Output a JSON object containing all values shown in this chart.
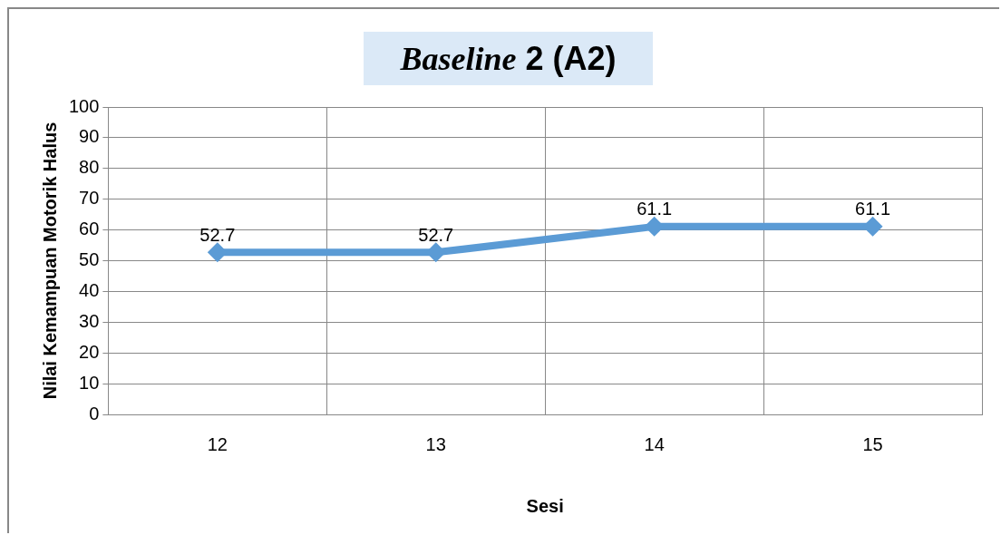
{
  "chart_data": {
    "type": "line",
    "title": "Baseline 2 (A2)",
    "xlabel": "Sesi",
    "ylabel": "Nilai Kemampuan Motorik Halus",
    "categories": [
      "12",
      "13",
      "14",
      "15"
    ],
    "series": [
      {
        "color": "#5b9bd5",
        "values": [
          52.7,
          52.7,
          61.1,
          61.1
        ]
      }
    ],
    "ylim": [
      0,
      100
    ],
    "yticks": [
      0,
      10,
      20,
      30,
      40,
      50,
      60,
      70,
      80,
      90,
      100
    ],
    "grid": true,
    "legend": false,
    "marker": "diamond",
    "line_style": "solid",
    "data_labels": true
  }
}
